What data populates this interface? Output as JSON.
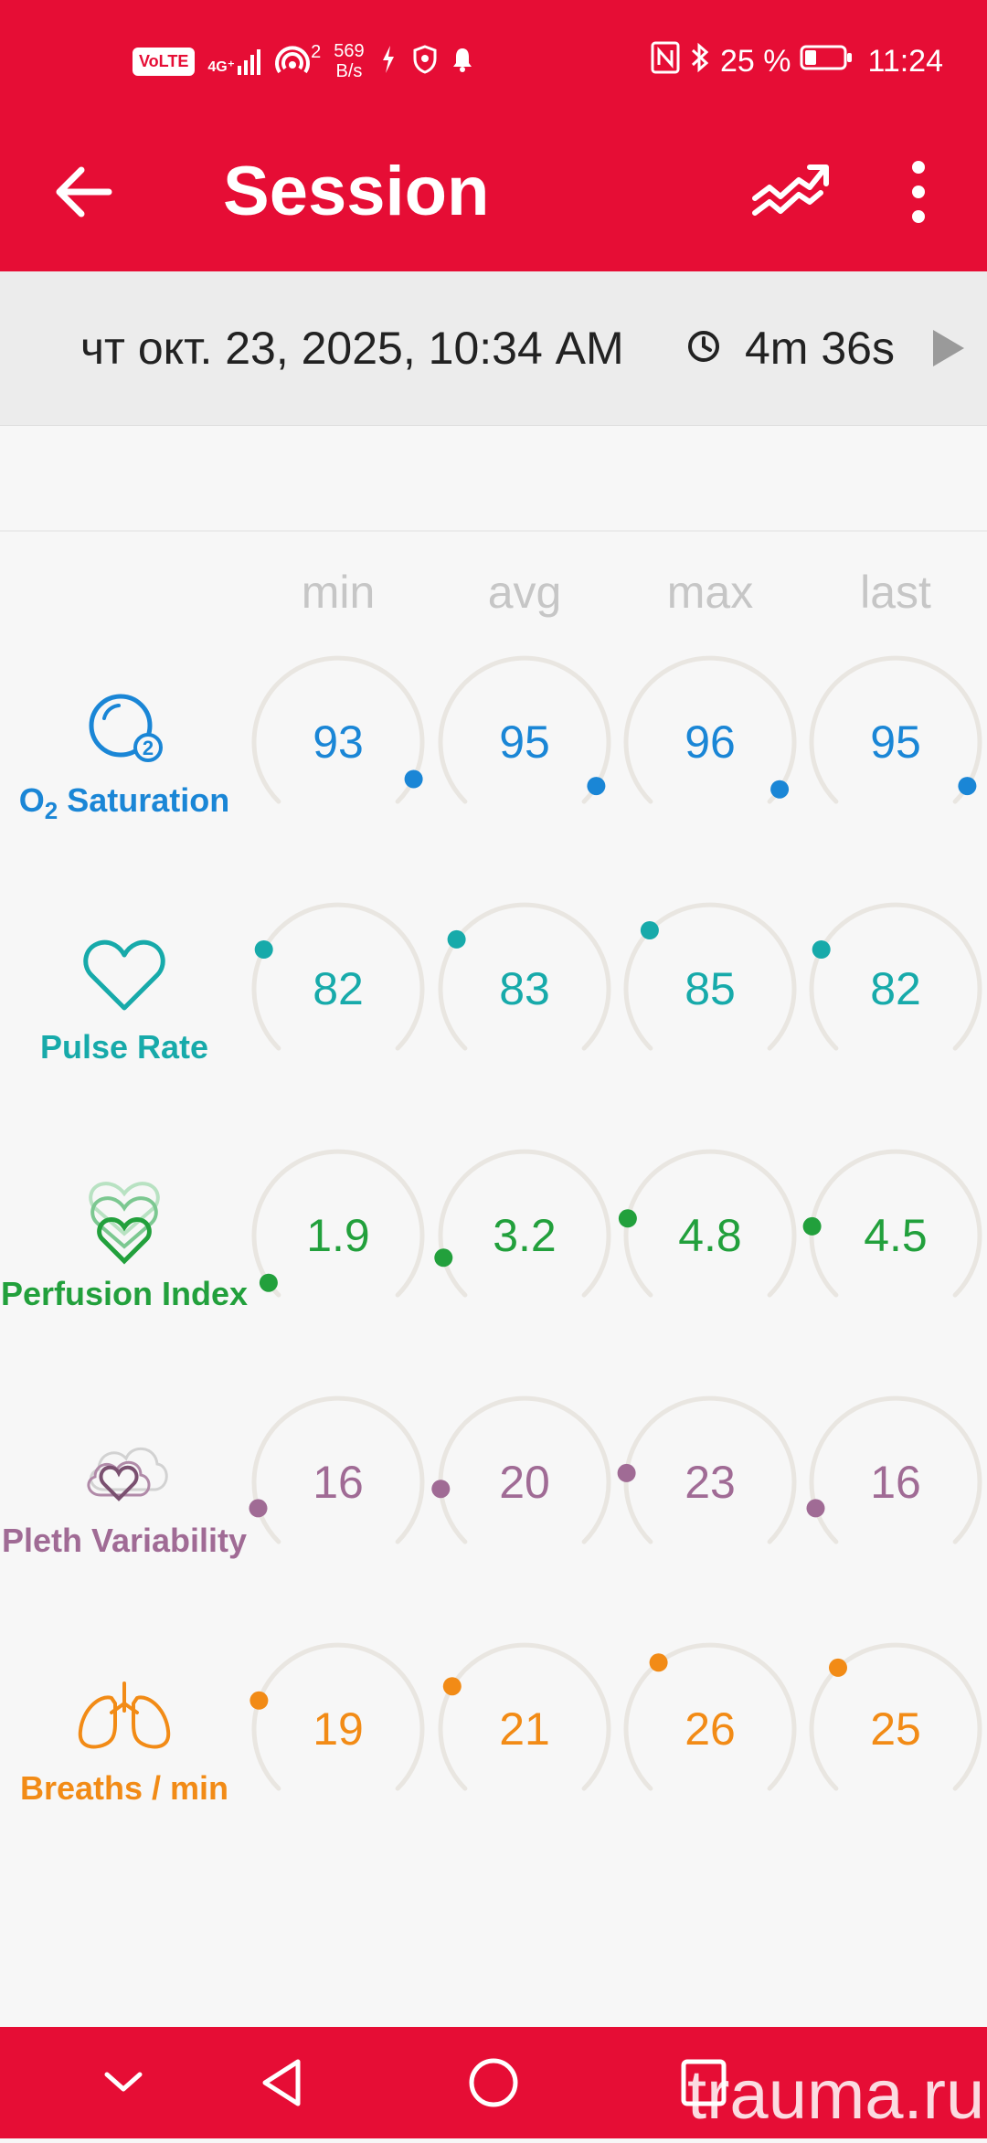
{
  "status_bar": {
    "volte": "VoLTE",
    "network": "4G⁺",
    "hotspot_count": "2",
    "net_speed_value": "569",
    "net_speed_unit": "B/s",
    "battery": "25 %",
    "time": "11:24"
  },
  "app_bar": {
    "title": "Session",
    "back_icon": "arrow-left-icon",
    "trend_icon": "trending-up-icon",
    "more_icon": "more-vertical-icon"
  },
  "session": {
    "datetime": "чт окт. 23, 2025, 10:34 AM",
    "duration": "4m 36s"
  },
  "columns": [
    "min",
    "avg",
    "max",
    "last"
  ],
  "rows": [
    {
      "id": "spo2",
      "label_main": "O",
      "label_sub": "2",
      "label_rest": " Saturation",
      "color": "#1a86d6",
      "icon": "o2-bubble-icon",
      "values": [
        "93",
        "95",
        "96",
        "95"
      ],
      "levels": [
        0.93,
        0.95,
        0.96,
        0.95
      ]
    },
    {
      "id": "pr",
      "label": "Pulse Rate",
      "color": "#17aaaa",
      "icon": "heart-outline-icon",
      "values": [
        "82",
        "83",
        "85",
        "82"
      ],
      "levels": [
        0.27,
        0.3,
        0.33,
        0.27
      ]
    },
    {
      "id": "pi",
      "label": "Perfusion Index",
      "color": "#22a03c",
      "icon": "stacked-hearts-icon",
      "values": [
        "1.9",
        "3.2",
        "4.8",
        "4.5"
      ],
      "levels": [
        0.04,
        0.11,
        0.21,
        0.19
      ]
    },
    {
      "id": "pvi",
      "label": "Pleth Variability",
      "color": "#a06b95",
      "icon": "heart-cloud-icon",
      "values": [
        "16",
        "20",
        "23",
        "16"
      ],
      "levels": [
        0.1,
        0.15,
        0.19,
        0.1
      ]
    },
    {
      "id": "rr",
      "label": "Breaths / min",
      "color": "#f28b16",
      "icon": "lungs-icon",
      "values": [
        "19",
        "21",
        "26",
        "25"
      ],
      "levels": [
        0.24,
        0.28,
        0.36,
        0.34
      ]
    }
  ],
  "watermark": "trauma.ru",
  "nav": {
    "collapse_icon": "chevron-down-icon",
    "back_icon": "triangle-back-icon",
    "home_icon": "circle-home-icon",
    "recents_icon": "square-recents-icon"
  }
}
